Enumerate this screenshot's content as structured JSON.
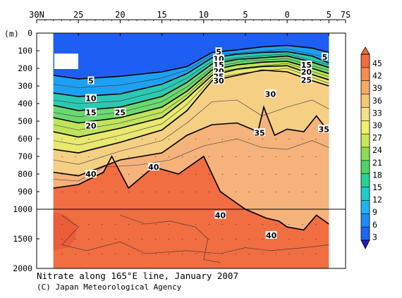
{
  "chart_data": {
    "type": "heatmap",
    "title": "Nitrate along 165°E line, January 2007",
    "credit": "(C) Japan Meteorological Agency",
    "ylabel": "(m)",
    "x_ticks": [
      {
        "lat": 30,
        "label": "30N"
      },
      {
        "lat": 25,
        "label": "25"
      },
      {
        "lat": 20,
        "label": "20"
      },
      {
        "lat": 15,
        "label": "15"
      },
      {
        "lat": 10,
        "label": "10"
      },
      {
        "lat": 5,
        "label": "5"
      },
      {
        "lat": 0,
        "label": "0"
      },
      {
        "lat": -5,
        "label": "5"
      },
      {
        "lat": -7,
        "label": "7S"
      }
    ],
    "y_ticks_upper": [
      0,
      100,
      200,
      300,
      400,
      500,
      600,
      700,
      800,
      900,
      1000
    ],
    "y_ticks_lower": [
      1500,
      2000
    ],
    "xlim": [
      30,
      -7
    ],
    "ylim_upper": [
      0,
      1000
    ],
    "ylim_lower": [
      1000,
      2000
    ],
    "data_range_lat": [
      28,
      -5
    ],
    "colorbar": {
      "ticks": [
        45,
        42,
        39,
        36,
        33,
        30,
        27,
        24,
        21,
        18,
        15,
        12,
        9,
        6,
        3
      ],
      "colors": [
        "#1e3cf0",
        "#1f64f5",
        "#1e8cf5",
        "#1eb4f0",
        "#1ecdc8",
        "#28d296",
        "#50d264",
        "#8cdc5a",
        "#c8e65a",
        "#f0f06e",
        "#f5e18c",
        "#f5c878",
        "#f5aa64",
        "#f58c50",
        "#f06e41"
      ]
    },
    "contour_labels": [
      {
        "text": "5",
        "lat": 23.5,
        "depth": 270
      },
      {
        "text": "10",
        "lat": 23.5,
        "depth": 370
      },
      {
        "text": "15",
        "lat": 23.5,
        "depth": 450
      },
      {
        "text": "20",
        "lat": 23.5,
        "depth": 525
      },
      {
        "text": "25",
        "lat": 20.0,
        "depth": 450
      },
      {
        "text": "40",
        "lat": 23.5,
        "depth": 800
      },
      {
        "text": "40",
        "lat": 16.0,
        "depth": 760
      },
      {
        "text": "5",
        "lat": 8.2,
        "depth": 105
      },
      {
        "text": "10",
        "lat": 8.2,
        "depth": 145
      },
      {
        "text": "15",
        "lat": 8.2,
        "depth": 180
      },
      {
        "text": "20",
        "lat": 8.2,
        "depth": 215
      },
      {
        "text": "25",
        "lat": 8.2,
        "depth": 245
      },
      {
        "text": "30",
        "lat": 8.2,
        "depth": 270
      },
      {
        "text": "30",
        "lat": 2.0,
        "depth": 345
      },
      {
        "text": "35",
        "lat": 3.3,
        "depth": 565
      },
      {
        "text": "35",
        "lat": -4.4,
        "depth": 545
      },
      {
        "text": "5",
        "lat": -4.5,
        "depth": 135
      },
      {
        "text": "15",
        "lat": -2.3,
        "depth": 180
      },
      {
        "text": "20",
        "lat": -2.3,
        "depth": 220
      },
      {
        "text": "25",
        "lat": -2.3,
        "depth": 265
      },
      {
        "text": "40",
        "lat": 8.0,
        "depth": 1100
      },
      {
        "text": "40",
        "lat": 1.9,
        "depth": 1440
      }
    ],
    "contours": [
      {
        "value": 5,
        "bold": true,
        "points": [
          [
            28,
            240
          ],
          [
            25,
            260
          ],
          [
            20,
            245
          ],
          [
            15,
            220
          ],
          [
            12,
            190
          ],
          [
            9,
            110
          ],
          [
            6,
            95
          ],
          [
            3,
            78
          ],
          [
            0,
            70
          ],
          [
            -3,
            85
          ],
          [
            -5,
            110
          ]
        ]
      },
      {
        "value": 10,
        "bold": true,
        "points": [
          [
            28,
            340
          ],
          [
            25,
            360
          ],
          [
            20,
            345
          ],
          [
            15,
            290
          ],
          [
            12,
            230
          ],
          [
            9,
            140
          ],
          [
            6,
            120
          ],
          [
            3,
            110
          ],
          [
            0,
            105
          ],
          [
            -3,
            130
          ],
          [
            -5,
            170
          ]
        ]
      },
      {
        "value": 15,
        "bold": true,
        "points": [
          [
            28,
            410
          ],
          [
            25,
            440
          ],
          [
            20,
            420
          ],
          [
            15,
            360
          ],
          [
            12,
            280
          ],
          [
            9,
            175
          ],
          [
            6,
            150
          ],
          [
            3,
            140
          ],
          [
            0,
            130
          ],
          [
            -3,
            165
          ],
          [
            -5,
            195
          ]
        ]
      },
      {
        "value": 20,
        "bold": true,
        "points": [
          [
            28,
            480
          ],
          [
            25,
            510
          ],
          [
            20,
            480
          ],
          [
            15,
            420
          ],
          [
            12,
            330
          ],
          [
            9,
            210
          ],
          [
            6,
            180
          ],
          [
            3,
            165
          ],
          [
            0,
            160
          ],
          [
            -3,
            200
          ],
          [
            -5,
            230
          ]
        ]
      },
      {
        "value": 25,
        "bold": true,
        "points": [
          [
            28,
            560
          ],
          [
            25,
            590
          ],
          [
            20,
            540
          ],
          [
            15,
            480
          ],
          [
            12,
            370
          ],
          [
            9,
            240
          ],
          [
            6,
            205
          ],
          [
            3,
            190
          ],
          [
            0,
            185
          ],
          [
            -3,
            235
          ],
          [
            -5,
            265
          ]
        ]
      },
      {
        "value": 30,
        "bold": true,
        "points": [
          [
            28,
            660
          ],
          [
            25,
            680
          ],
          [
            20,
            620
          ],
          [
            15,
            550
          ],
          [
            12,
            440
          ],
          [
            9,
            270
          ],
          [
            6,
            240
          ],
          [
            3,
            210
          ],
          [
            0,
            220
          ],
          [
            -3,
            270
          ],
          [
            -5,
            300
          ]
        ]
      },
      {
        "value": 35,
        "bold": true,
        "points": [
          [
            28,
            790
          ],
          [
            25,
            810
          ],
          [
            20,
            720
          ],
          [
            15,
            680
          ],
          [
            12,
            580
          ],
          [
            9,
            520
          ],
          [
            6,
            510
          ],
          [
            3.5,
            560
          ],
          [
            2.8,
            420
          ],
          [
            1.5,
            580
          ],
          [
            0,
            545
          ],
          [
            -2,
            560
          ],
          [
            -3.5,
            470
          ],
          [
            -5,
            560
          ]
        ]
      },
      {
        "value": 40,
        "bold": true,
        "points": [
          [
            28,
            880
          ],
          [
            25,
            860
          ],
          [
            22,
            790
          ],
          [
            21,
            700
          ],
          [
            19,
            880
          ],
          [
            16,
            760
          ],
          [
            13,
            800
          ],
          [
            10,
            700
          ],
          [
            8,
            900
          ],
          [
            5,
            1000
          ],
          [
            2.5,
            1150
          ],
          [
            1,
            1200
          ],
          [
            0,
            1300
          ],
          [
            -2,
            1350
          ],
          [
            -3.5,
            1100
          ],
          [
            -5,
            1250
          ]
        ]
      }
    ],
    "thin_contours": [
      {
        "points": [
          [
            28,
            290
          ],
          [
            25,
            310
          ],
          [
            20,
            295
          ],
          [
            15,
            255
          ],
          [
            12,
            210
          ],
          [
            9,
            125
          ],
          [
            5,
            110
          ],
          [
            0,
            90
          ],
          [
            -5,
            140
          ]
        ]
      },
      {
        "points": [
          [
            28,
            380
          ],
          [
            25,
            400
          ],
          [
            20,
            385
          ],
          [
            15,
            325
          ],
          [
            12,
            255
          ],
          [
            9,
            160
          ],
          [
            5,
            135
          ],
          [
            0,
            118
          ],
          [
            -5,
            180
          ]
        ]
      },
      {
        "points": [
          [
            28,
            450
          ],
          [
            25,
            475
          ],
          [
            20,
            450
          ],
          [
            15,
            390
          ],
          [
            12,
            305
          ],
          [
            9,
            195
          ],
          [
            5,
            158
          ],
          [
            0,
            145
          ],
          [
            -5,
            212
          ]
        ]
      },
      {
        "points": [
          [
            28,
            520
          ],
          [
            25,
            550
          ],
          [
            20,
            510
          ],
          [
            15,
            450
          ],
          [
            12,
            350
          ],
          [
            9,
            225
          ],
          [
            5,
            195
          ],
          [
            0,
            172
          ],
          [
            -5,
            248
          ]
        ]
      },
      {
        "points": [
          [
            28,
            610
          ],
          [
            25,
            635
          ],
          [
            20,
            580
          ],
          [
            15,
            515
          ],
          [
            12,
            405
          ],
          [
            9,
            255
          ],
          [
            5,
            225
          ],
          [
            0,
            200
          ],
          [
            -5,
            285
          ]
        ]
      },
      {
        "points": [
          [
            28,
            720
          ],
          [
            25,
            745
          ],
          [
            20,
            670
          ],
          [
            15,
            610
          ],
          [
            12,
            510
          ],
          [
            9,
            390
          ],
          [
            6,
            380
          ],
          [
            3,
            470
          ],
          [
            0,
            420
          ],
          [
            -3,
            380
          ],
          [
            -5,
            430
          ]
        ]
      },
      {
        "points": [
          [
            28,
            830
          ],
          [
            25,
            840
          ],
          [
            22,
            760
          ],
          [
            18,
            750
          ],
          [
            14,
            720
          ],
          [
            10,
            640
          ],
          [
            6,
            600
          ],
          [
            3,
            650
          ],
          [
            0,
            660
          ],
          [
            -3,
            610
          ],
          [
            -5,
            650
          ]
        ]
      },
      {
        "points": [
          [
            27,
            1100
          ],
          [
            25,
            1300
          ],
          [
            27,
            1600
          ],
          [
            24,
            1700
          ],
          [
            20,
            1550
          ],
          [
            17,
            1750
          ],
          [
            12,
            1700
          ],
          [
            8,
            1750
          ],
          [
            5,
            1650
          ],
          [
            2,
            1700
          ],
          [
            -2,
            1650
          ],
          [
            -5,
            1600
          ]
        ]
      },
      {
        "points": [
          [
            20,
            1100
          ],
          [
            17,
            1250
          ],
          [
            14,
            1200
          ],
          [
            11,
            1300
          ],
          [
            9.5,
            1500
          ],
          [
            10,
            1850
          ],
          [
            8,
            1900
          ]
        ]
      }
    ]
  }
}
